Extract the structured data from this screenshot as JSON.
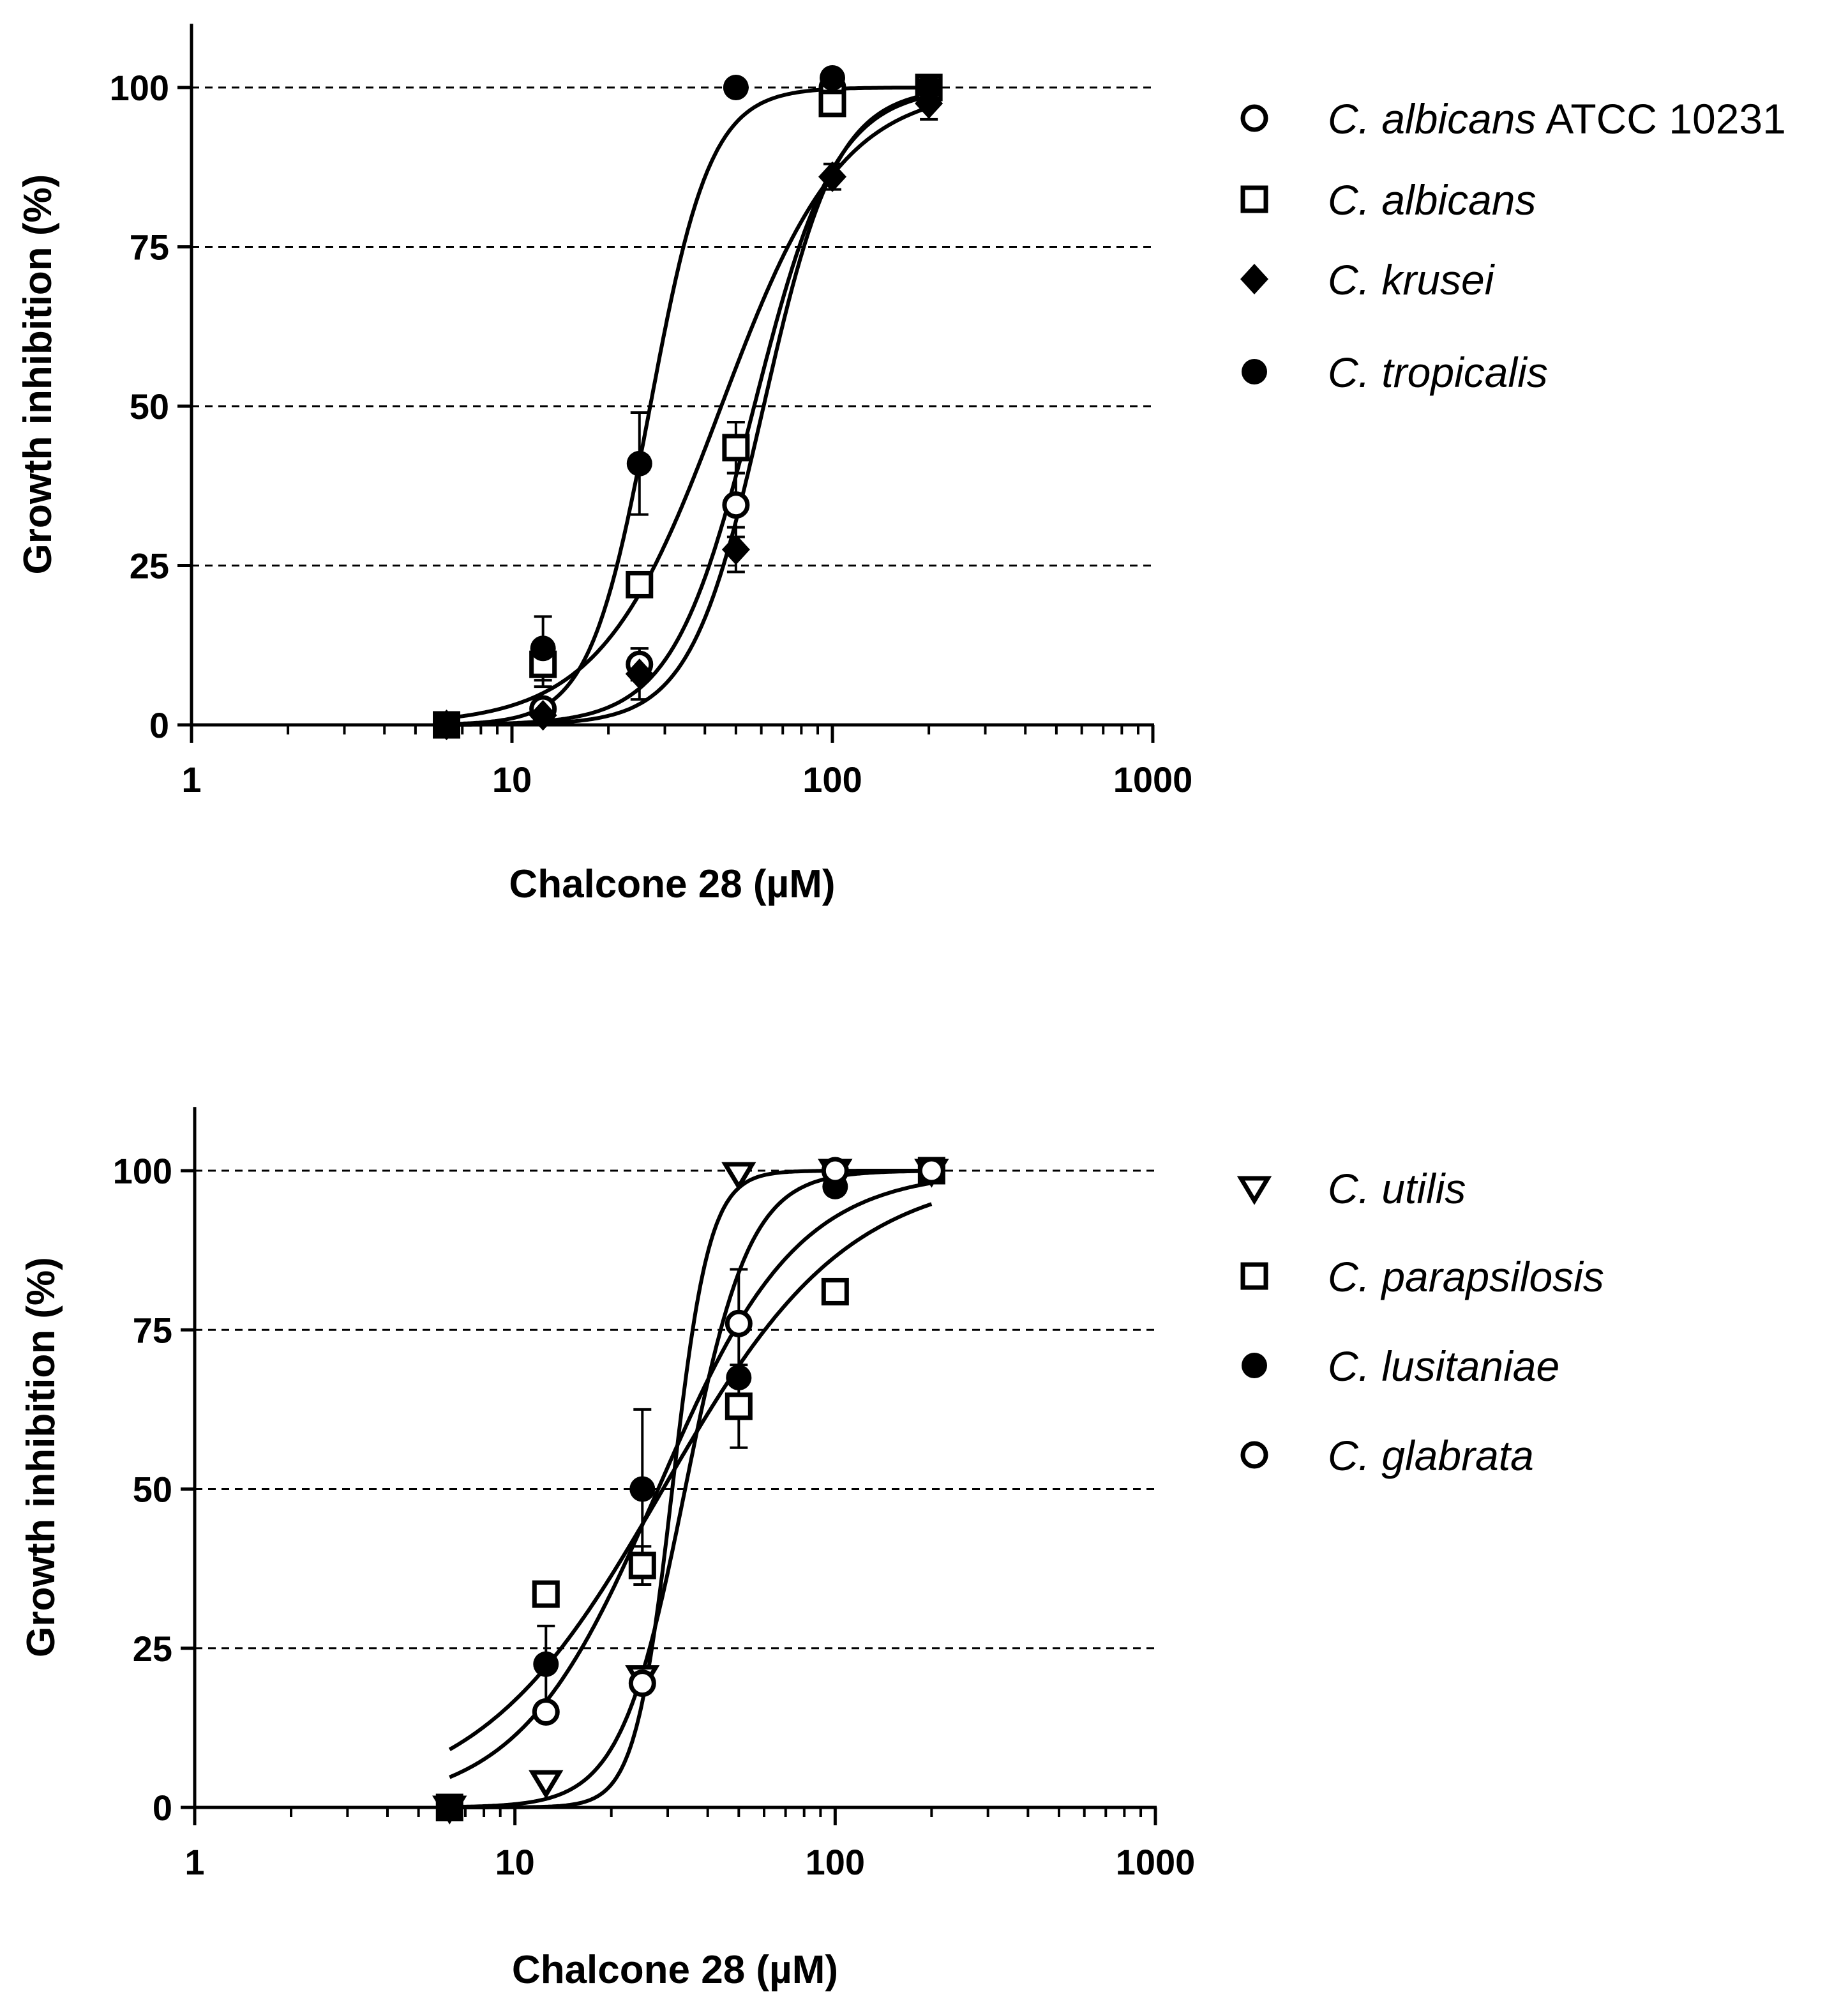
{
  "chart_data": [
    {
      "type": "scatter",
      "title": "",
      "xlabel": "Chalcone 28 (µM)",
      "ylabel": "Growth inhibition (%)",
      "xscale": "log",
      "xlim": [
        1,
        1000
      ],
      "ylim": [
        0,
        110
      ],
      "xticks": [
        1,
        10,
        100,
        1000
      ],
      "xtick_labels": [
        "1",
        "10",
        "100",
        "1000"
      ],
      "yticks": [
        0,
        25,
        50,
        75,
        100
      ],
      "ytick_labels": [
        "0",
        "25",
        "50",
        "75",
        "100"
      ],
      "gridlines": [
        25,
        50,
        75,
        100
      ],
      "legend_position": "right",
      "series": [
        {
          "name": "C. albicans ATCC 10231",
          "species": "C. albicans",
          "suffix": " ATCC 10231",
          "marker": "circle-open",
          "x": [
            6.25,
            12.5,
            25,
            50,
            100,
            200
          ],
          "y": [
            0,
            2.5,
            9.5,
            34.5,
            100,
            100
          ],
          "err": [
            0,
            0,
            2.5,
            5,
            0,
            0
          ],
          "fit": {
            "ec50": 57,
            "hill": 3.4
          }
        },
        {
          "name": "C. albicans",
          "species": "C. albicans",
          "suffix": "",
          "marker": "square-open",
          "x": [
            6.25,
            12.5,
            25,
            50,
            100,
            200
          ],
          "y": [
            0,
            9.5,
            22,
            43.5,
            97.5,
            100
          ],
          "err": [
            0,
            3.5,
            0,
            4,
            0,
            0
          ],
          "fit": {
            "ec50": 45,
            "hill": 2.3
          }
        },
        {
          "name": "C. krusei",
          "species": "C. krusei",
          "suffix": "",
          "marker": "diamond-filled",
          "x": [
            6.25,
            12.5,
            25,
            50,
            100,
            200
          ],
          "y": [
            0,
            1.5,
            8,
            27.5,
            86,
            97.5
          ],
          "err": [
            0,
            0,
            4,
            3.5,
            2,
            2.5
          ],
          "fit": {
            "ec50": 61,
            "hill": 3.8
          }
        },
        {
          "name": "C. tropicalis",
          "species": "C. tropicalis",
          "suffix": "",
          "marker": "circle-filled",
          "x": [
            6.25,
            12.5,
            25,
            50,
            100,
            200
          ],
          "y": [
            0,
            12,
            41,
            100,
            101.5,
            100
          ],
          "err": [
            0,
            5,
            8,
            0,
            0,
            0
          ],
          "fit": {
            "ec50": 27,
            "hill": 4.6
          }
        }
      ]
    },
    {
      "type": "scatter",
      "title": "",
      "xlabel": "Chalcone 28 (µM)",
      "ylabel": "Growth inhibition (%)",
      "xscale": "log",
      "xlim": [
        1,
        1000
      ],
      "ylim": [
        0,
        110
      ],
      "xticks": [
        1,
        10,
        100,
        1000
      ],
      "xtick_labels": [
        "1",
        "10",
        "100",
        "1000"
      ],
      "yticks": [
        0,
        25,
        50,
        75,
        100
      ],
      "ytick_labels": [
        "0",
        "25",
        "50",
        "75",
        "100"
      ],
      "gridlines": [
        25,
        50,
        75,
        100
      ],
      "legend_position": "right",
      "series": [
        {
          "name": "C. utilis",
          "species": "C. utilis",
          "suffix": "",
          "marker": "triangle-down-open",
          "x": [
            6.25,
            12.5,
            25,
            50,
            100,
            200
          ],
          "y": [
            0,
            4,
            20.5,
            99.5,
            100,
            100
          ],
          "err": [
            0,
            0,
            0,
            0,
            0,
            0
          ],
          "fit": {
            "ec50": 31,
            "hill": 7.5
          }
        },
        {
          "name": "C. parapsilosis",
          "species": "C. parapsilosis",
          "suffix": "",
          "marker": "square-open",
          "x": [
            6.25,
            12.5,
            25,
            50,
            100,
            200
          ],
          "y": [
            0,
            33.5,
            38,
            63,
            81,
            100
          ],
          "err": [
            0,
            0,
            3,
            6.5,
            0,
            0
          ],
          "fit": {
            "ec50": 29,
            "hill": 1.5
          }
        },
        {
          "name": "C. lusitaniae",
          "species": "C. lusitaniae",
          "suffix": "",
          "marker": "circle-filled",
          "x": [
            6.25,
            12.5,
            25,
            50,
            100,
            200
          ],
          "y": [
            0,
            22.5,
            50,
            67.5,
            97.5,
            100
          ],
          "err": [
            0,
            6,
            12.5,
            0,
            0,
            0
          ],
          "fit": {
            "ec50": 28,
            "hill": 2.0
          }
        },
        {
          "name": "C. glabrata",
          "species": "C. glabrata",
          "suffix": "",
          "marker": "circle-open",
          "x": [
            6.25,
            12.5,
            25,
            50,
            100,
            200
          ],
          "y": [
            0,
            15,
            19.5,
            76,
            100,
            100
          ],
          "err": [
            0,
            0,
            1.5,
            8.5,
            0,
            0
          ],
          "fit": {
            "ec50": 34,
            "hill": 4.3
          }
        }
      ]
    }
  ]
}
